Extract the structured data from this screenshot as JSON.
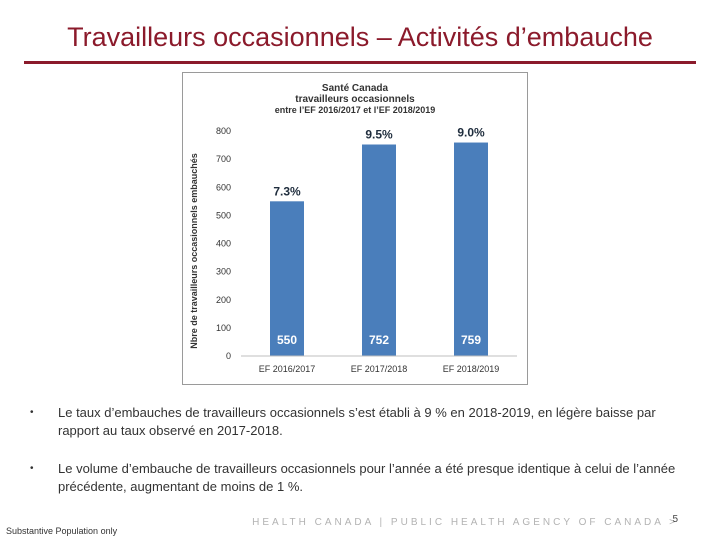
{
  "slide": {
    "title": "Travailleurs occasionnels – Activités d’embauche"
  },
  "bullets": [
    {
      "marker": "•",
      "text": "Le taux d’embauches de travailleurs occasionnels s’est établi à 9 % en 2018-2019, en légère baisse par rapport au taux observé en 2017-2018."
    },
    {
      "marker": "•",
      "text": "Le volume d’embauche de travailleurs occasionnels pour l’année a été presque identique à celui de l’année précédente, augmentant de moins de 1 %."
    }
  ],
  "footer": {
    "note": "Substantive Population only",
    "agency": "HEALTH CANADA | PUBLIC HEALTH AGENCY OF CANADA >",
    "page_number": "5"
  },
  "chart_data": {
    "type": "bar",
    "title": "Santé Canada",
    "subtitle_lines": [
      "travailleurs occasionnels",
      "entre l’EF 2016/2017 et l’EF 2018/2019"
    ],
    "categories": [
      "EF 2016/2017",
      "EF 2017/2018",
      "EF 2018/2019"
    ],
    "values": [
      550,
      752,
      759
    ],
    "value_labels": [
      "550",
      "752",
      "759"
    ],
    "rate_labels": [
      "7.3%",
      "9.5%",
      "9.0%"
    ],
    "ylabel": "Nbre de travailleurs occasionnels embauchés",
    "xlabel": "",
    "ylim": [
      0,
      800
    ],
    "yticks": [
      0,
      100,
      200,
      300,
      400,
      500,
      600,
      700,
      800
    ],
    "grid": false,
    "bar_color": "#4a7ebb",
    "value_label_color": "#ffffff",
    "rate_label_color": "#1f2d3d"
  }
}
